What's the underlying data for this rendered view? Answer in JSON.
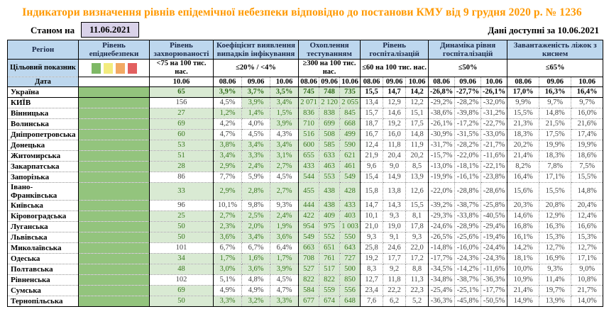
{
  "title": "Індикатори визначення рівнів епідемічної небезпеки відповідно до постанови КМУ від 9 грудня 2020 р. № 1236",
  "meta": {
    "as_of_label": "Станом на",
    "as_of_date": "11.06.2021",
    "available_text": "Дані доступні за  10.06.2021"
  },
  "colors": {
    "title_orange": "#ff9900",
    "header_blue": "#bdd7ee",
    "epidemic_column_green": "#93c47d",
    "target_met_green": "#d9ead3",
    "target_met_text": "#38761d",
    "as_of_box_lavender": "#d9d2e9"
  },
  "legend_swatches": [
    "#7fb966",
    "#f3ec7e",
    "#f2a963",
    "#e26060"
  ],
  "header": {
    "region_label": "Регіон",
    "target_label": "Цільовий показник",
    "date_label": "Дата",
    "groups": [
      {
        "key": "epi",
        "title": "Рівень епіднебезпеки",
        "target": "",
        "dates": [],
        "legend": true
      },
      {
        "key": "inc",
        "title": "Рівень захворюваності",
        "target": "<75 на 100 тис. нас.",
        "dates": [
          "10.06"
        ]
      },
      {
        "key": "det",
        "title": "Коефіцієнт виявлення випадків інфікування",
        "target": "≤20% / <4%",
        "dates": [
          "08.06",
          "09.06",
          "10.06"
        ]
      },
      {
        "key": "test",
        "title": "Охоплення тестуванням",
        "target": "≥300 на 100 тис. нас.",
        "dates": [
          "08.06",
          "09.06",
          "10.06"
        ]
      },
      {
        "key": "hosp",
        "title": "Рівень госпіталізацій",
        "target": "≤60 на 100 тис. нас.",
        "dates": [
          "08.06",
          "09.06",
          "10.06"
        ]
      },
      {
        "key": "dyn",
        "title": "Динаміка рівня госпіталізацій",
        "target": "≤50%",
        "dates": [
          "08.06",
          "09.06",
          "10.06"
        ]
      },
      {
        "key": "beds",
        "title": "Завантаженість ліжок з киснем",
        "target": "≤65%",
        "dates": [
          "08.06",
          "09.06",
          "10.06"
        ]
      }
    ]
  },
  "rows": [
    {
      "region": "Україна",
      "bold": true,
      "incidence": {
        "v": "65",
        "ok": true
      },
      "detection": [
        {
          "v": "3,9%",
          "ok": true
        },
        {
          "v": "3,7%",
          "ok": true
        },
        {
          "v": "3,5%",
          "ok": true
        }
      ],
      "testing": [
        {
          "v": "745",
          "ok": true
        },
        {
          "v": "748",
          "ok": true
        },
        {
          "v": "735",
          "ok": true
        }
      ],
      "hospitalization": [
        "15,5",
        "14,7",
        "14,2"
      ],
      "dynamics": [
        "-26,8%",
        "-27,7%",
        "-26,1%"
      ],
      "beds": [
        "17,0%",
        "16,3%",
        "16,4%"
      ]
    },
    {
      "region": "КИЇВ",
      "incidence": {
        "v": "156",
        "ok": false
      },
      "detection": [
        {
          "v": "4,5%",
          "ok": false
        },
        {
          "v": "3,9%",
          "ok": true
        },
        {
          "v": "3,4%",
          "ok": true
        }
      ],
      "testing": [
        {
          "v": "2 071",
          "ok": true
        },
        {
          "v": "2 120",
          "ok": true
        },
        {
          "v": "2 055",
          "ok": true
        }
      ],
      "hospitalization": [
        "13,4",
        "12,9",
        "12,2"
      ],
      "dynamics": [
        "-29,2%",
        "-28,2%",
        "-32,0%"
      ],
      "beds": [
        "9,9%",
        "9,7%",
        "9,7%"
      ]
    },
    {
      "region": "Вінницька",
      "incidence": {
        "v": "27",
        "ok": true
      },
      "detection": [
        {
          "v": "1,2%",
          "ok": true
        },
        {
          "v": "1,4%",
          "ok": true
        },
        {
          "v": "1,5%",
          "ok": true
        }
      ],
      "testing": [
        {
          "v": "836",
          "ok": true
        },
        {
          "v": "838",
          "ok": true
        },
        {
          "v": "845",
          "ok": true
        }
      ],
      "hospitalization": [
        "15,7",
        "14,6",
        "15,1"
      ],
      "dynamics": [
        "-38,6%",
        "-39,8%",
        "-31,2%"
      ],
      "beds": [
        "15,5%",
        "14,8%",
        "16,0%"
      ]
    },
    {
      "region": "Волинська",
      "incidence": {
        "v": "69",
        "ok": true
      },
      "detection": [
        {
          "v": "4,2%",
          "ok": false
        },
        {
          "v": "4,0%",
          "ok": false
        },
        {
          "v": "3,9%",
          "ok": true
        }
      ],
      "testing": [
        {
          "v": "710",
          "ok": true
        },
        {
          "v": "699",
          "ok": true
        },
        {
          "v": "668",
          "ok": true
        }
      ],
      "hospitalization": [
        "18,7",
        "19,2",
        "17,5"
      ],
      "dynamics": [
        "-26,1%",
        "-17,2%",
        "-22,7%"
      ],
      "beds": [
        "21,3%",
        "21,5%",
        "21,6%"
      ]
    },
    {
      "region": "Дніпропетровська",
      "incidence": {
        "v": "60",
        "ok": true
      },
      "detection": [
        {
          "v": "4,7%",
          "ok": false
        },
        {
          "v": "4,5%",
          "ok": false
        },
        {
          "v": "4,3%",
          "ok": false
        }
      ],
      "testing": [
        {
          "v": "516",
          "ok": true
        },
        {
          "v": "508",
          "ok": true
        },
        {
          "v": "499",
          "ok": true
        }
      ],
      "hospitalization": [
        "16,7",
        "16,0",
        "14,8"
      ],
      "dynamics": [
        "-30,9%",
        "-31,5%",
        "-33,0%"
      ],
      "beds": [
        "18,3%",
        "17,5%",
        "17,4%"
      ]
    },
    {
      "region": "Донецька",
      "incidence": {
        "v": "53",
        "ok": true
      },
      "detection": [
        {
          "v": "3,8%",
          "ok": true
        },
        {
          "v": "3,4%",
          "ok": true
        },
        {
          "v": "3,4%",
          "ok": true
        }
      ],
      "testing": [
        {
          "v": "600",
          "ok": true
        },
        {
          "v": "585",
          "ok": true
        },
        {
          "v": "590",
          "ok": true
        }
      ],
      "hospitalization": [
        "12,4",
        "11,8",
        "11,9"
      ],
      "dynamics": [
        "-31,7%",
        "-28,2%",
        "-21,7%"
      ],
      "beds": [
        "20,2%",
        "19,9%",
        "19,9%"
      ]
    },
    {
      "region": "Житомирська",
      "incidence": {
        "v": "51",
        "ok": true
      },
      "detection": [
        {
          "v": "3,4%",
          "ok": true
        },
        {
          "v": "3,3%",
          "ok": true
        },
        {
          "v": "3,1%",
          "ok": true
        }
      ],
      "testing": [
        {
          "v": "655",
          "ok": true
        },
        {
          "v": "633",
          "ok": true
        },
        {
          "v": "621",
          "ok": true
        }
      ],
      "hospitalization": [
        "21,9",
        "20,4",
        "20,2"
      ],
      "dynamics": [
        "-15,7%",
        "-22,0%",
        "-11,6%"
      ],
      "beds": [
        "21,4%",
        "18,3%",
        "18,6%"
      ]
    },
    {
      "region": "Закарпатська",
      "incidence": {
        "v": "28",
        "ok": true
      },
      "detection": [
        {
          "v": "2,9%",
          "ok": true
        },
        {
          "v": "2,4%",
          "ok": true
        },
        {
          "v": "2,7%",
          "ok": true
        }
      ],
      "testing": [
        {
          "v": "433",
          "ok": true
        },
        {
          "v": "463",
          "ok": true
        },
        {
          "v": "461",
          "ok": true
        }
      ],
      "hospitalization": [
        "9,6",
        "9,0",
        "8,5"
      ],
      "dynamics": [
        "-13,0%",
        "-18,1%",
        "-22,1%"
      ],
      "beds": [
        "8,2%",
        "7,8%",
        "7,5%"
      ]
    },
    {
      "region": "Запорізька",
      "incidence": {
        "v": "86",
        "ok": false
      },
      "detection": [
        {
          "v": "7,7%",
          "ok": false
        },
        {
          "v": "5,9%",
          "ok": false
        },
        {
          "v": "4,5%",
          "ok": false
        }
      ],
      "testing": [
        {
          "v": "544",
          "ok": true
        },
        {
          "v": "553",
          "ok": true
        },
        {
          "v": "549",
          "ok": true
        }
      ],
      "hospitalization": [
        "15,4",
        "14,9",
        "13,9"
      ],
      "dynamics": [
        "-19,9%",
        "-16,1%",
        "-23,8%"
      ],
      "beds": [
        "16,4%",
        "17,1%",
        "15,5%"
      ]
    },
    {
      "region": "Івано-Франківська",
      "incidence": {
        "v": "33",
        "ok": true
      },
      "detection": [
        {
          "v": "2,9%",
          "ok": true
        },
        {
          "v": "2,8%",
          "ok": true
        },
        {
          "v": "2,7%",
          "ok": true
        }
      ],
      "testing": [
        {
          "v": "455",
          "ok": true
        },
        {
          "v": "438",
          "ok": true
        },
        {
          "v": "428",
          "ok": true
        }
      ],
      "hospitalization": [
        "15,8",
        "13,8",
        "12,6"
      ],
      "dynamics": [
        "-22,0%",
        "-28,8%",
        "-28,6%"
      ],
      "beds": [
        "15,6%",
        "15,5%",
        "14,8%"
      ]
    },
    {
      "region": "Київська",
      "incidence": {
        "v": "96",
        "ok": false
      },
      "detection": [
        {
          "v": "10,1%",
          "ok": false
        },
        {
          "v": "9,8%",
          "ok": false
        },
        {
          "v": "9,3%",
          "ok": false
        }
      ],
      "testing": [
        {
          "v": "444",
          "ok": true
        },
        {
          "v": "438",
          "ok": true
        },
        {
          "v": "433",
          "ok": true
        }
      ],
      "hospitalization": [
        "14,7",
        "14,3",
        "15,5"
      ],
      "dynamics": [
        "-39,2%",
        "-38,7%",
        "-25,8%"
      ],
      "beds": [
        "20,3%",
        "20,8%",
        "20,4%"
      ]
    },
    {
      "region": "Кіровоградська",
      "incidence": {
        "v": "25",
        "ok": true
      },
      "detection": [
        {
          "v": "2,7%",
          "ok": true
        },
        {
          "v": "2,5%",
          "ok": true
        },
        {
          "v": "2,4%",
          "ok": true
        }
      ],
      "testing": [
        {
          "v": "422",
          "ok": true
        },
        {
          "v": "409",
          "ok": true
        },
        {
          "v": "403",
          "ok": true
        }
      ],
      "hospitalization": [
        "10,1",
        "9,3",
        "8,1"
      ],
      "dynamics": [
        "-29,3%",
        "-33,8%",
        "-40,5%"
      ],
      "beds": [
        "14,6%",
        "12,9%",
        "12,4%"
      ]
    },
    {
      "region": "Луганська",
      "incidence": {
        "v": "50",
        "ok": true
      },
      "detection": [
        {
          "v": "2,3%",
          "ok": true
        },
        {
          "v": "2,0%",
          "ok": true
        },
        {
          "v": "1,9%",
          "ok": true
        }
      ],
      "testing": [
        {
          "v": "954",
          "ok": true
        },
        {
          "v": "975",
          "ok": true
        },
        {
          "v": "1 003",
          "ok": true
        }
      ],
      "hospitalization": [
        "21,0",
        "19,0",
        "17,8"
      ],
      "dynamics": [
        "-24,6%",
        "-28,9%",
        "-29,4%"
      ],
      "beds": [
        "16,8%",
        "16,3%",
        "16,6%"
      ]
    },
    {
      "region": "Львівська",
      "incidence": {
        "v": "50",
        "ok": true
      },
      "detection": [
        {
          "v": "3,6%",
          "ok": true
        },
        {
          "v": "3,4%",
          "ok": true
        },
        {
          "v": "3,6%",
          "ok": true
        }
      ],
      "testing": [
        {
          "v": "549",
          "ok": true
        },
        {
          "v": "552",
          "ok": true
        },
        {
          "v": "550",
          "ok": true
        }
      ],
      "hospitalization": [
        "9,3",
        "9,1",
        "9,3"
      ],
      "dynamics": [
        "-26,5%",
        "-25,6%",
        "-19,4%"
      ],
      "beds": [
        "16,1%",
        "15,3%",
        "15,3%"
      ]
    },
    {
      "region": "Миколаївська",
      "incidence": {
        "v": "101",
        "ok": false
      },
      "detection": [
        {
          "v": "6,7%",
          "ok": false
        },
        {
          "v": "6,7%",
          "ok": false
        },
        {
          "v": "6,4%",
          "ok": false
        }
      ],
      "testing": [
        {
          "v": "663",
          "ok": true
        },
        {
          "v": "651",
          "ok": true
        },
        {
          "v": "643",
          "ok": true
        }
      ],
      "hospitalization": [
        "25,8",
        "24,6",
        "22,0"
      ],
      "dynamics": [
        "-14,8%",
        "-16,0%",
        "-24,4%"
      ],
      "beds": [
        "14,2%",
        "12,7%",
        "12,7%"
      ]
    },
    {
      "region": "Одеська",
      "incidence": {
        "v": "34",
        "ok": true
      },
      "detection": [
        {
          "v": "1,7%",
          "ok": true
        },
        {
          "v": "1,6%",
          "ok": true
        },
        {
          "v": "1,7%",
          "ok": true
        }
      ],
      "testing": [
        {
          "v": "708",
          "ok": true
        },
        {
          "v": "761",
          "ok": true
        },
        {
          "v": "727",
          "ok": true
        }
      ],
      "hospitalization": [
        "19,2",
        "17,7",
        "17,2"
      ],
      "dynamics": [
        "-17,7%",
        "-24,3%",
        "-24,3%"
      ],
      "beds": [
        "18,1%",
        "16,9%",
        "17,1%"
      ]
    },
    {
      "region": "Полтавська",
      "incidence": {
        "v": "48",
        "ok": true
      },
      "detection": [
        {
          "v": "3,0%",
          "ok": true
        },
        {
          "v": "3,6%",
          "ok": true
        },
        {
          "v": "3,9%",
          "ok": true
        }
      ],
      "testing": [
        {
          "v": "527",
          "ok": true
        },
        {
          "v": "517",
          "ok": true
        },
        {
          "v": "500",
          "ok": true
        }
      ],
      "hospitalization": [
        "8,3",
        "9,2",
        "8,8"
      ],
      "dynamics": [
        "-34,5%",
        "-14,2%",
        "-11,6%"
      ],
      "beds": [
        "10,0%",
        "9,3%",
        "9,0%"
      ]
    },
    {
      "region": "Рівненська",
      "incidence": {
        "v": "102",
        "ok": false
      },
      "detection": [
        {
          "v": "5,1%",
          "ok": false
        },
        {
          "v": "4,8%",
          "ok": false
        },
        {
          "v": "4,5%",
          "ok": false
        }
      ],
      "testing": [
        {
          "v": "822",
          "ok": true
        },
        {
          "v": "822",
          "ok": true
        },
        {
          "v": "850",
          "ok": true
        }
      ],
      "hospitalization": [
        "12,7",
        "11,8",
        "11,3"
      ],
      "dynamics": [
        "-34,8%",
        "-38,7%",
        "-36,3%"
      ],
      "beds": [
        "10,9%",
        "11,4%",
        "10,8%"
      ]
    },
    {
      "region": "Сумська",
      "incidence": {
        "v": "69",
        "ok": true
      },
      "detection": [
        {
          "v": "4,9%",
          "ok": false
        },
        {
          "v": "4,9%",
          "ok": false
        },
        {
          "v": "4,7%",
          "ok": false
        }
      ],
      "testing": [
        {
          "v": "584",
          "ok": true
        },
        {
          "v": "559",
          "ok": true
        },
        {
          "v": "556",
          "ok": true
        }
      ],
      "hospitalization": [
        "23,4",
        "22,2",
        "22,3"
      ],
      "dynamics": [
        "-25,4%",
        "-25,1%",
        "-17,7%"
      ],
      "beds": [
        "21,4%",
        "19,7%",
        "21,7%"
      ]
    },
    {
      "region": "Тернопільська",
      "incidence": {
        "v": "50",
        "ok": true
      },
      "detection": [
        {
          "v": "3,3%",
          "ok": true
        },
        {
          "v": "3,2%",
          "ok": true
        },
        {
          "v": "3,3%",
          "ok": true
        }
      ],
      "testing": [
        {
          "v": "677",
          "ok": true
        },
        {
          "v": "674",
          "ok": true
        },
        {
          "v": "648",
          "ok": true
        }
      ],
      "hospitalization": [
        "7,6",
        "6,2",
        "5,2"
      ],
      "dynamics": [
        "-36,3%",
        "-45,8%",
        "-50,5%"
      ],
      "beds": [
        "14,9%",
        "13,9%",
        "14,0%"
      ]
    }
  ]
}
